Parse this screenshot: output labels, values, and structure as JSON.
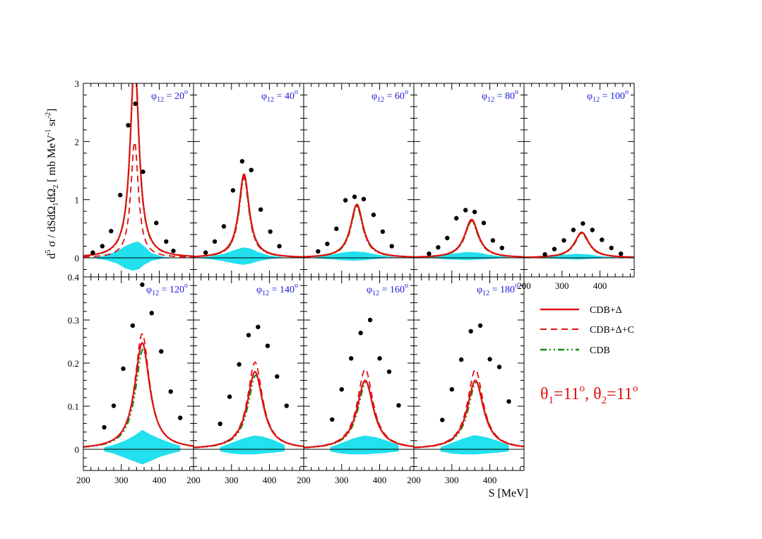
{
  "chart_data": {
    "type": "line",
    "layout": "2x5 panel grid, bottom row has 4 panels plus legend",
    "ylabel_parts": {
      "a": "d",
      "a_sup": "5",
      "b": " σ / dSdΩ",
      "b_sub": "1",
      "c": "dΩ",
      "c_sub": "2",
      "d": " [ mb MeV",
      "d_sup": "-1",
      "e": " sr",
      "e_sup": "-2",
      "f": "]"
    },
    "xlabel": "S [MeV]",
    "phi_symbol": "φ",
    "phi_subscript": "12",
    "degree_symbol": "o",
    "angle_label": {
      "t1": "θ",
      "t1_sub": "1",
      "t1_val": "=11",
      "t1_sup": "o",
      "sep": ", ",
      "t2": "θ",
      "t2_sub": "2",
      "t2_val": "=11",
      "t2_sup": "o"
    },
    "x_ticks_bottom": [
      "200",
      "300",
      "400"
    ],
    "x_ticks_top_row": [
      "200",
      "300",
      "400"
    ],
    "top_row": {
      "ylim": [
        -0.3,
        3.0
      ],
      "yticks": [
        0,
        1,
        2,
        3
      ],
      "ytick_labels": [
        "0",
        "1",
        "2",
        "3"
      ]
    },
    "bottom_row": {
      "ylim": [
        -0.035,
        0.4
      ],
      "yticks": [
        0,
        0.1,
        0.2,
        0.3,
        0.4
      ],
      "ytick_labels": [
        "0",
        "0.1",
        "0.2",
        "0.3",
        "0.4"
      ]
    },
    "xlim": [
      200,
      490
    ],
    "legend": [
      {
        "label": "CDB+Δ",
        "color": "#e01010",
        "style": "solid"
      },
      {
        "label": "CDB+Δ+C",
        "color": "#e01010",
        "style": "dashed"
      },
      {
        "label": "CDB",
        "color": "#138a13",
        "style": "dash-dot"
      }
    ],
    "colors": {
      "theory": "#e01010",
      "cdb": "#138a13",
      "band": "#22e0ee",
      "data": "#000000",
      "label": "#1a1ad6"
    },
    "panels": [
      {
        "phi": "20",
        "row": 0,
        "curves": {
          "cdb_delta": {
            "A": 3.4,
            "c": 335,
            "w": 28
          },
          "cdb_delta_c": {
            "A": 2.0,
            "c": 335,
            "w": 24
          },
          "cdb": {
            "A": 3.5,
            "c": 335,
            "w": 27
          }
        },
        "band": {
          "x": [
            200,
            230,
            260,
            290,
            310,
            330,
            345,
            360,
            380,
            410,
            450
          ],
          "upper": [
            0,
            0.01,
            0.04,
            0.12,
            0.2,
            0.26,
            0.28,
            0.2,
            0.08,
            0.02,
            0
          ],
          "lower": [
            0,
            -0.01,
            -0.04,
            -0.1,
            -0.18,
            -0.22,
            -0.2,
            -0.12,
            -0.05,
            -0.01,
            0
          ]
        },
        "points": {
          "x": [
            225,
            250,
            273,
            297,
            318,
            337,
            357,
            392,
            418,
            437
          ],
          "y": [
            0.09,
            0.2,
            0.46,
            1.08,
            2.28,
            2.65,
            1.48,
            0.6,
            0.28,
            0.12
          ]
        }
      },
      {
        "phi": "40",
        "row": 0,
        "curves": {
          "cdb_delta": {
            "A": 1.44,
            "c": 333,
            "w": 33
          },
          "cdb_delta_c": {
            "A": 1.4,
            "c": 333,
            "w": 32
          },
          "cdb": {
            "A": 1.38,
            "c": 333,
            "w": 32
          }
        },
        "band": {
          "x": [
            200,
            240,
            280,
            310,
            330,
            350,
            370,
            400,
            440,
            470
          ],
          "upper": [
            0,
            0.02,
            0.07,
            0.14,
            0.18,
            0.16,
            0.1,
            0.04,
            0.01,
            0
          ],
          "lower": [
            0,
            -0.02,
            -0.06,
            -0.1,
            -0.12,
            -0.1,
            -0.06,
            -0.02,
            0,
            0
          ]
        },
        "points": {
          "x": [
            232,
            256,
            280,
            304,
            328,
            352,
            377,
            402,
            426
          ],
          "y": [
            0.09,
            0.28,
            0.54,
            1.16,
            1.66,
            1.51,
            0.83,
            0.45,
            0.2
          ]
        }
      },
      {
        "phi": "60",
        "row": 0,
        "curves": {
          "cdb_delta": {
            "A": 0.92,
            "c": 340,
            "w": 40
          },
          "cdb_delta_c": {
            "A": 0.9,
            "c": 340,
            "w": 39
          },
          "cdb": {
            "A": 0.88,
            "c": 340,
            "w": 39
          }
        },
        "band": {
          "x": [
            220,
            260,
            300,
            330,
            360,
            390,
            430,
            470
          ],
          "upper": [
            0,
            0.04,
            0.09,
            0.11,
            0.1,
            0.06,
            0.02,
            0
          ],
          "lower": [
            0,
            -0.02,
            -0.04,
            -0.05,
            -0.04,
            -0.02,
            0,
            0
          ]
        },
        "points": {
          "x": [
            238,
            262,
            286,
            310,
            334,
            358,
            384,
            408,
            432
          ],
          "y": [
            0.11,
            0.24,
            0.5,
            0.99,
            1.05,
            1.01,
            0.74,
            0.45,
            0.2
          ]
        }
      },
      {
        "phi": "80",
        "row": 0,
        "curves": {
          "cdb_delta": {
            "A": 0.66,
            "c": 352,
            "w": 44
          },
          "cdb_delta_c": {
            "A": 0.64,
            "c": 352,
            "w": 43
          },
          "cdb": {
            "A": 0.63,
            "c": 352,
            "w": 43
          }
        },
        "band": {
          "x": [
            220,
            260,
            300,
            340,
            370,
            400,
            440,
            470
          ],
          "upper": [
            0,
            0.03,
            0.07,
            0.1,
            0.09,
            0.05,
            0.02,
            0
          ],
          "lower": [
            0,
            -0.01,
            -0.03,
            -0.04,
            -0.03,
            -0.02,
            0,
            0
          ]
        },
        "points": {
          "x": [
            240,
            264,
            288,
            312,
            336,
            360,
            384,
            408,
            432
          ],
          "y": [
            0.07,
            0.18,
            0.34,
            0.68,
            0.82,
            0.79,
            0.6,
            0.3,
            0.17
          ]
        }
      },
      {
        "phi": "100",
        "row": 0,
        "curves": {
          "cdb_delta": {
            "A": 0.44,
            "c": 352,
            "w": 46
          },
          "cdb_delta_c": {
            "A": 0.43,
            "c": 352,
            "w": 45
          },
          "cdb": {
            "A": 0.42,
            "c": 352,
            "w": 45
          }
        },
        "band": {
          "x": [
            220,
            260,
            300,
            340,
            370,
            400,
            440,
            470
          ],
          "upper": [
            0,
            0.02,
            0.05,
            0.07,
            0.06,
            0.03,
            0.01,
            0
          ],
          "lower": [
            0,
            -0.01,
            -0.02,
            -0.03,
            -0.02,
            -0.01,
            0,
            0
          ]
        },
        "points": {
          "x": [
            255,
            280,
            305,
            330,
            355,
            380,
            405,
            430,
            455
          ],
          "y": [
            0.06,
            0.15,
            0.3,
            0.48,
            0.59,
            0.48,
            0.31,
            0.17,
            0.07
          ]
        }
      },
      {
        "phi": "120",
        "row": 1,
        "curves": {
          "cdb_delta": {
            "A": 0.247,
            "c": 355,
            "w": 48
          },
          "cdb_delta_c": {
            "A": 0.268,
            "c": 355,
            "w": 46
          },
          "cdb": {
            "A": 0.232,
            "c": 357,
            "w": 48
          }
        },
        "band": {
          "x": [
            255,
            280,
            310,
            340,
            355,
            375,
            400,
            430,
            455
          ],
          "upper": [
            0.005,
            0.01,
            0.02,
            0.035,
            0.045,
            0.035,
            0.025,
            0.015,
            0.008
          ],
          "lower": [
            -0.005,
            -0.01,
            -0.02,
            -0.03,
            -0.035,
            -0.028,
            -0.018,
            -0.01,
            -0.005
          ]
        },
        "points": {
          "x": [
            255,
            280,
            305,
            330,
            355,
            380,
            405,
            430,
            455
          ],
          "y": [
            0.051,
            0.101,
            0.187,
            0.287,
            0.382,
            0.316,
            0.227,
            0.134,
            0.073
          ]
        }
      },
      {
        "phi": "140",
        "row": 1,
        "curves": {
          "cdb_delta": {
            "A": 0.18,
            "c": 362,
            "w": 50
          },
          "cdb_delta_c": {
            "A": 0.202,
            "c": 362,
            "w": 48
          },
          "cdb": {
            "A": 0.172,
            "c": 364,
            "w": 50
          }
        },
        "band": {
          "x": [
            270,
            300,
            330,
            360,
            380,
            410,
            440
          ],
          "upper": [
            0.005,
            0.015,
            0.025,
            0.032,
            0.03,
            0.022,
            0.01
          ],
          "lower": [
            -0.005,
            -0.01,
            -0.012,
            -0.012,
            -0.01,
            -0.008,
            -0.005
          ]
        },
        "points": {
          "x": [
            270,
            295,
            320,
            345,
            370,
            395,
            420,
            445
          ],
          "y": [
            0.059,
            0.122,
            0.197,
            0.265,
            0.284,
            0.24,
            0.169,
            0.101
          ]
        }
      },
      {
        "phi": "160",
        "row": 1,
        "curves": {
          "cdb_delta": {
            "A": 0.16,
            "c": 362,
            "w": 52
          },
          "cdb_delta_c": {
            "A": 0.186,
            "c": 362,
            "w": 50
          },
          "cdb": {
            "A": 0.156,
            "c": 364,
            "w": 52
          }
        },
        "band": {
          "x": [
            270,
            300,
            330,
            360,
            390,
            420,
            450
          ],
          "upper": [
            0.005,
            0.015,
            0.025,
            0.032,
            0.028,
            0.02,
            0.01
          ],
          "lower": [
            -0.005,
            -0.01,
            -0.012,
            -0.012,
            -0.01,
            -0.008,
            -0.005
          ]
        },
        "points": {
          "x": [
            275,
            300,
            325,
            350,
            375,
            400,
            425,
            450
          ],
          "y": [
            0.069,
            0.139,
            0.211,
            0.27,
            0.3,
            0.211,
            0.18,
            0.102
          ]
        }
      },
      {
        "phi": "180",
        "row": 1,
        "curves": {
          "cdb_delta": {
            "A": 0.16,
            "c": 362,
            "w": 52
          },
          "cdb_delta_c": {
            "A": 0.185,
            "c": 362,
            "w": 50
          },
          "cdb": {
            "A": 0.155,
            "c": 364,
            "w": 52
          }
        },
        "band": {
          "x": [
            270,
            300,
            330,
            360,
            390,
            420,
            450
          ],
          "upper": [
            0.005,
            0.015,
            0.025,
            0.033,
            0.028,
            0.02,
            0.01
          ],
          "lower": [
            -0.005,
            -0.01,
            -0.012,
            -0.012,
            -0.01,
            -0.008,
            -0.005
          ]
        },
        "points": {
          "x": [
            275,
            300,
            325,
            350,
            375,
            400,
            425,
            450
          ],
          "y": [
            0.068,
            0.139,
            0.208,
            0.274,
            0.287,
            0.209,
            0.191,
            0.111
          ]
        }
      }
    ]
  }
}
